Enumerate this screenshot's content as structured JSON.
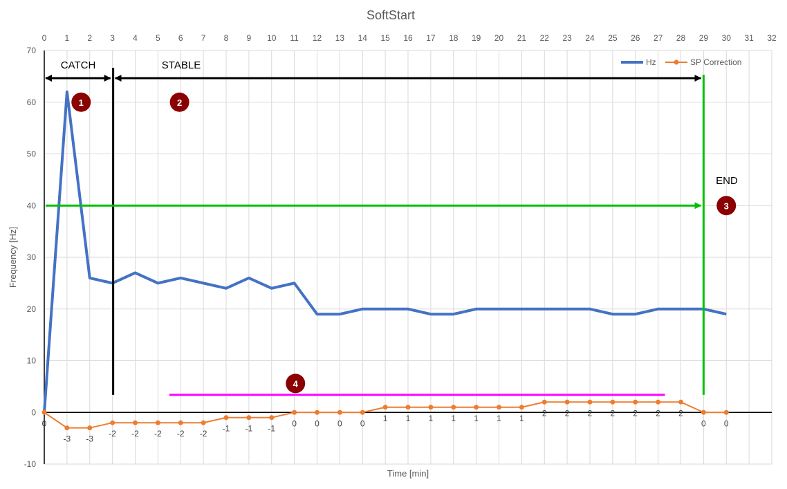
{
  "chart_data": {
    "type": "line",
    "title": "SoftStart",
    "xlabel": "Time [min]",
    "ylabel": "Frequency [Hz]",
    "xlim": [
      0,
      32
    ],
    "ylim": [
      -10,
      70
    ],
    "x_ticks": [
      0,
      1,
      2,
      3,
      4,
      5,
      6,
      7,
      8,
      9,
      10,
      11,
      12,
      13,
      14,
      15,
      16,
      17,
      18,
      19,
      20,
      21,
      22,
      23,
      24,
      25,
      26,
      27,
      28,
      29,
      30,
      31,
      32
    ],
    "y_ticks": [
      -10,
      0,
      10,
      20,
      30,
      40,
      50,
      60,
      70
    ],
    "grid": true,
    "legend_position": "top-right",
    "series": [
      {
        "name": "Hz",
        "color": "#4472C4",
        "x": [
          0,
          1,
          2,
          3,
          4,
          5,
          6,
          7,
          8,
          9,
          10,
          11,
          12,
          13,
          14,
          15,
          16,
          17,
          18,
          19,
          20,
          21,
          22,
          23,
          24,
          25,
          26,
          27,
          28,
          29,
          30
        ],
        "y": [
          0,
          62,
          26,
          25,
          27,
          25,
          26,
          25,
          24,
          26,
          24,
          25,
          19,
          19,
          20,
          20,
          20,
          19,
          19,
          20,
          20,
          20,
          20,
          20,
          20,
          19,
          19,
          20,
          20,
          20,
          19
        ]
      },
      {
        "name": "SP Correction",
        "color": "#ED7D31",
        "x": [
          0,
          1,
          2,
          3,
          4,
          5,
          6,
          7,
          8,
          9,
          10,
          11,
          12,
          13,
          14,
          15,
          16,
          17,
          18,
          19,
          20,
          21,
          22,
          23,
          24,
          25,
          26,
          27,
          28,
          29,
          30
        ],
        "y": [
          0,
          -3,
          -3,
          -2,
          -2,
          -2,
          -2,
          -2,
          -1,
          -1,
          -1,
          0,
          0,
          0,
          0,
          1,
          1,
          1,
          1,
          1,
          1,
          1,
          2,
          2,
          2,
          2,
          2,
          2,
          2,
          0,
          0
        ],
        "data_labels": true
      }
    ],
    "annotations": {
      "catch_label": "CATCH",
      "stable_label": "STABLE",
      "end_label": "END",
      "badges": [
        "1",
        "2",
        "3",
        "4"
      ],
      "colors": {
        "black_line": "#000000",
        "green_line": "#00C000",
        "magenta_line": "#FF00FF",
        "badge_fill": "#8B0000"
      }
    }
  }
}
